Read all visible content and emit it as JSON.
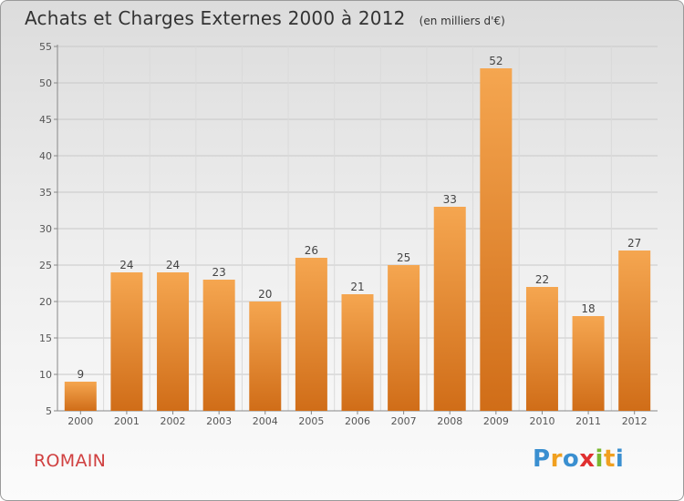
{
  "chart_data": {
    "type": "bar",
    "title": "Achats et Charges Externes 2000 à 2012",
    "subtitle": "(en milliers d'€)",
    "categories": [
      "2000",
      "2001",
      "2002",
      "2003",
      "2004",
      "2005",
      "2006",
      "2007",
      "2008",
      "2009",
      "2010",
      "2011",
      "2012"
    ],
    "values": [
      9,
      24,
      24,
      23,
      20,
      26,
      21,
      25,
      33,
      52,
      22,
      18,
      27
    ],
    "ylim": [
      5,
      55
    ],
    "yticks": [
      5,
      10,
      15,
      20,
      25,
      30,
      35,
      40,
      45,
      50,
      55
    ],
    "grid": true,
    "bar_color_top": "#f5a650",
    "bar_color_bottom": "#d06d18"
  },
  "footer": {
    "commune": "ROMAIN",
    "logo_text": "Proxiti",
    "logo_colors": [
      "#3a8fd0",
      "#f0a020",
      "#3a8fd0",
      "#e03030",
      "#7ab830",
      "#f0a020",
      "#3a8fd0"
    ]
  }
}
